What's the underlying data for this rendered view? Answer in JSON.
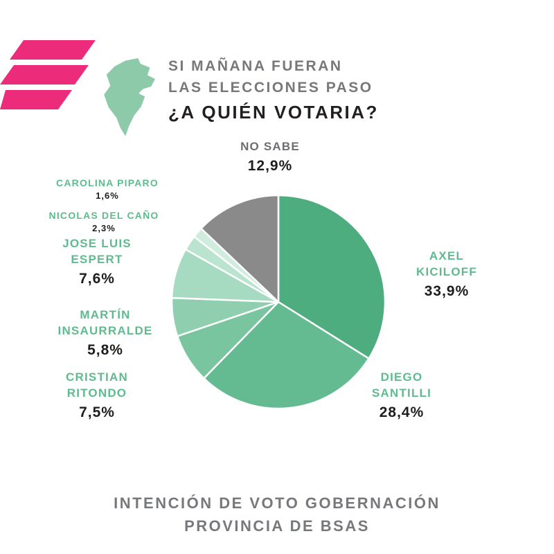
{
  "header": {
    "title_line1": "SI MAÑANA FUERAN",
    "title_line2": "LAS ELECCIONES PASO",
    "title_line3": "¿A QUIÉN VOTARIA?"
  },
  "footer": {
    "line1": "INTENCIÓN DE VOTO GOBERNACIÓN",
    "line2": "PROVINCIA DE BSAS"
  },
  "logo": {
    "color": "#ec2c7b",
    "map_color": "#8ccaa9"
  },
  "chart_data": {
    "type": "pie",
    "title": "SI MAÑANA FUERAN LAS ELECCIONES PASO ¿A QUIÉN VOTARIA?",
    "subtitle": "INTENCIÓN DE VOTO GOBERNACIÓN PROVINCIA DE BSAS",
    "direction": "clockwise",
    "start_angle_deg": 0,
    "legend_position": "around",
    "total": 100,
    "categories": [
      "AXEL KICILOFF",
      "DIEGO SANTILLI",
      "CRISTIAN RITONDO",
      "MARTÍN INSAURRALDE",
      "JOSE LUIS ESPERT",
      "NICOLAS DEL CAÑO",
      "CAROLINA PIPARO",
      "NO SABE"
    ],
    "values": [
      33.9,
      28.4,
      7.5,
      5.8,
      7.6,
      2.3,
      1.6,
      12.9
    ],
    "slices": [
      {
        "name": "AXEL KICILOFF",
        "value": 33.9,
        "display": "33,9%",
        "color": "#4ead7e"
      },
      {
        "name": "DIEGO SANTILLI",
        "value": 28.4,
        "display": "28,4%",
        "color": "#65bb91"
      },
      {
        "name": "CRISTIAN RITONDO",
        "value": 7.5,
        "display": "7,5%",
        "color": "#79c5a0"
      },
      {
        "name": "MARTÍN INSAURRALDE",
        "value": 5.8,
        "display": "5,8%",
        "color": "#8fcfb0"
      },
      {
        "name": "JOSE LUIS ESPERT",
        "value": 7.6,
        "display": "7,6%",
        "color": "#a6dac1"
      },
      {
        "name": "NICOLAS DEL CAÑO",
        "value": 2.3,
        "display": "2,3%",
        "color": "#bbe4d0"
      },
      {
        "name": "CAROLINA PIPARO",
        "value": 1.6,
        "display": "1,6%",
        "color": "#cfecde"
      },
      {
        "name": "NO SABE",
        "value": 12.9,
        "display": "12,9%",
        "color": "#8a8a8a"
      }
    ]
  }
}
